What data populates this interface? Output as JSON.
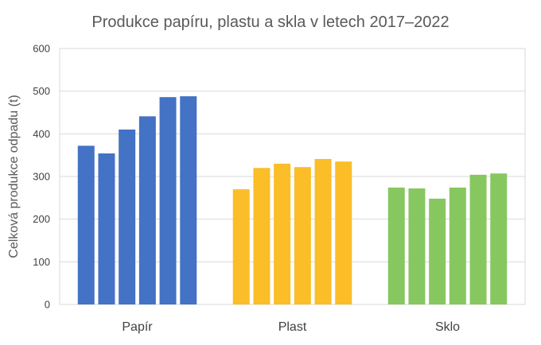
{
  "chart_data": {
    "type": "bar",
    "title": "Produkce papíru, plastu a skla v letech 2017–2022",
    "xlabel": "",
    "ylabel": "Celková produkce odpadu (t)",
    "ylim": [
      0,
      600
    ],
    "yticks": [
      0,
      100,
      200,
      300,
      400,
      500,
      600
    ],
    "grid": true,
    "groups": [
      {
        "name": "Papír",
        "color": "#4472c4",
        "values": [
          372,
          354,
          410,
          441,
          486,
          488
        ]
      },
      {
        "name": "Plast",
        "color": "#fbbd28",
        "values": [
          270,
          320,
          330,
          322,
          341,
          335
        ]
      },
      {
        "name": "Sklo",
        "color": "#87c760",
        "values": [
          274,
          272,
          248,
          274,
          304,
          307
        ]
      }
    ]
  }
}
